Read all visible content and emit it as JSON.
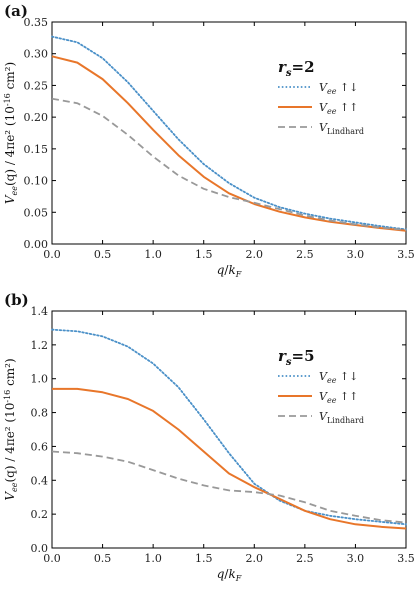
{
  "chart_data": [
    {
      "type": "line",
      "panel_label": "(a)",
      "annotation": "r_s=2",
      "annotation_main": "r",
      "annotation_sub": "s",
      "annotation_rest": "=2",
      "xlabel": "q/k_F",
      "ylabel": "V_ee(q) / 4πe² (10⁻¹⁶ cm²)",
      "xlim": [
        0,
        3.5
      ],
      "ylim": [
        0,
        0.35
      ],
      "xticks": [
        0.0,
        0.5,
        1.0,
        1.5,
        2.0,
        2.5,
        3.0,
        3.5
      ],
      "xtick_labels": [
        "0.0",
        "0.5",
        "1.0",
        "1.5",
        "2.0",
        "2.5",
        "3.0",
        "3.5"
      ],
      "yticks": [
        0.0,
        0.05,
        0.1,
        0.15,
        0.2,
        0.25,
        0.3,
        0.35
      ],
      "ytick_labels": [
        "0.00",
        "0.05",
        "0.10",
        "0.15",
        "0.20",
        "0.25",
        "0.30",
        "0.35"
      ],
      "grid": false,
      "legend_position": "right",
      "series": [
        {
          "name": "V_ee ↑↓",
          "legend_main": "V",
          "legend_sub": "ee",
          "legend_tail": "↑↓",
          "color": "#4a90c8",
          "style": "dotted",
          "x": [
            0.0,
            0.25,
            0.5,
            0.75,
            1.0,
            1.25,
            1.5,
            1.75,
            2.0,
            2.25,
            2.5,
            2.75,
            3.0,
            3.25,
            3.5
          ],
          "y": [
            0.327,
            0.318,
            0.293,
            0.255,
            0.21,
            0.165,
            0.126,
            0.096,
            0.073,
            0.058,
            0.048,
            0.04,
            0.034,
            0.028,
            0.023
          ]
        },
        {
          "name": "V_ee ↑↑",
          "legend_main": "V",
          "legend_sub": "ee",
          "legend_tail": "↑↑",
          "color": "#e8762a",
          "style": "solid",
          "x": [
            0.0,
            0.25,
            0.5,
            0.75,
            1.0,
            1.25,
            1.5,
            1.75,
            2.0,
            2.25,
            2.5,
            2.75,
            3.0,
            3.25,
            3.5
          ],
          "y": [
            0.296,
            0.286,
            0.26,
            0.222,
            0.18,
            0.14,
            0.106,
            0.08,
            0.063,
            0.051,
            0.042,
            0.035,
            0.03,
            0.025,
            0.021
          ]
        },
        {
          "name": "V_Lindhard",
          "legend_main": "V",
          "legend_sub": "Lindhard",
          "legend_tail": "",
          "color": "#999999",
          "style": "dashed",
          "x": [
            0.0,
            0.25,
            0.5,
            0.75,
            1.0,
            1.25,
            1.5,
            1.75,
            2.0,
            2.25,
            2.5,
            2.75,
            3.0,
            3.25,
            3.5
          ],
          "y": [
            0.229,
            0.222,
            0.202,
            0.172,
            0.138,
            0.108,
            0.087,
            0.074,
            0.065,
            0.055,
            0.045,
            0.037,
            0.031,
            0.026,
            0.022
          ]
        }
      ]
    },
    {
      "type": "line",
      "panel_label": "(b)",
      "annotation": "r_s=5",
      "annotation_main": "r",
      "annotation_sub": "s",
      "annotation_rest": "=5",
      "xlabel": "q/k_F",
      "ylabel": "V_ee(q) / 4πe² (10⁻¹⁶ cm²)",
      "xlim": [
        0,
        3.5
      ],
      "ylim": [
        0,
        1.4
      ],
      "xticks": [
        0.0,
        0.5,
        1.0,
        1.5,
        2.0,
        2.5,
        3.0,
        3.5
      ],
      "xtick_labels": [
        "0.0",
        "0.5",
        "1.0",
        "1.5",
        "2.0",
        "2.5",
        "3.0",
        "3.5"
      ],
      "yticks": [
        0.0,
        0.2,
        0.4,
        0.6,
        0.8,
        1.0,
        1.2,
        1.4
      ],
      "ytick_labels": [
        "0.0",
        "0.2",
        "0.4",
        "0.6",
        "0.8",
        "1.0",
        "1.2",
        "1.4"
      ],
      "grid": false,
      "legend_position": "right",
      "series": [
        {
          "name": "V_ee ↑↓",
          "legend_main": "V",
          "legend_sub": "ee",
          "legend_tail": "↑↓",
          "color": "#4a90c8",
          "style": "dotted",
          "x": [
            0.0,
            0.25,
            0.5,
            0.75,
            1.0,
            1.25,
            1.5,
            1.75,
            2.0,
            2.25,
            2.5,
            2.75,
            3.0,
            3.25,
            3.5
          ],
          "y": [
            1.29,
            1.28,
            1.25,
            1.19,
            1.09,
            0.95,
            0.76,
            0.56,
            0.38,
            0.28,
            0.22,
            0.19,
            0.17,
            0.155,
            0.14
          ]
        },
        {
          "name": "V_ee ↑↑",
          "legend_main": "V",
          "legend_sub": "ee",
          "legend_tail": "↑↑",
          "color": "#e8762a",
          "style": "solid",
          "x": [
            0.0,
            0.25,
            0.5,
            0.75,
            1.0,
            1.25,
            1.5,
            1.75,
            2.0,
            2.25,
            2.5,
            2.75,
            3.0,
            3.25,
            3.5
          ],
          "y": [
            0.94,
            0.94,
            0.92,
            0.88,
            0.81,
            0.7,
            0.57,
            0.44,
            0.36,
            0.29,
            0.22,
            0.17,
            0.14,
            0.125,
            0.115
          ]
        },
        {
          "name": "V_Lindhard",
          "legend_main": "V",
          "legend_sub": "Lindhard",
          "legend_tail": "",
          "color": "#999999",
          "style": "dashed",
          "x": [
            0.0,
            0.25,
            0.5,
            0.75,
            1.0,
            1.25,
            1.5,
            1.75,
            2.0,
            2.25,
            2.5,
            2.75,
            3.0,
            3.25,
            3.5
          ],
          "y": [
            0.57,
            0.56,
            0.54,
            0.51,
            0.46,
            0.41,
            0.37,
            0.34,
            0.33,
            0.31,
            0.27,
            0.22,
            0.19,
            0.165,
            0.15
          ]
        }
      ]
    }
  ]
}
